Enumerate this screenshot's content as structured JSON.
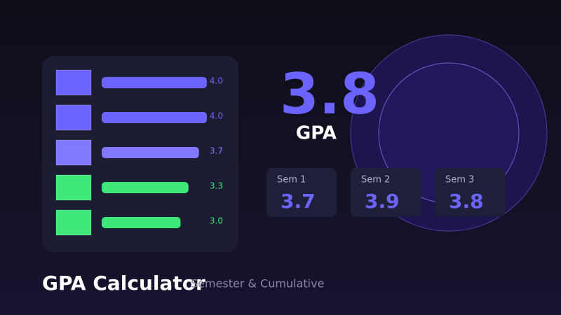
{
  "grades": [
    {
      "value": 4,
      "label": "4.0",
      "color": "#6c63ff"
    },
    {
      "value": 4,
      "label": "4.0",
      "color": "#6c63ff"
    },
    {
      "value": 3.7,
      "label": "3.7",
      "color": "#8178ff"
    },
    {
      "value": 3.3,
      "label": "3.3",
      "color": "#3ee87a"
    },
    {
      "value": 3,
      "label": "3.0",
      "color": "#3ee87a"
    }
  ],
  "gpa": {
    "value": "3.8",
    "label": "GPA"
  },
  "semesters": [
    {
      "name": "Sem 1",
      "gpa": "3.7"
    },
    {
      "name": "Sem 2",
      "gpa": "3.9"
    },
    {
      "name": "Sem 3",
      "gpa": "3.8"
    }
  ],
  "title": "GPA Calculator",
  "subtitle": "Semester & Cumulative"
}
